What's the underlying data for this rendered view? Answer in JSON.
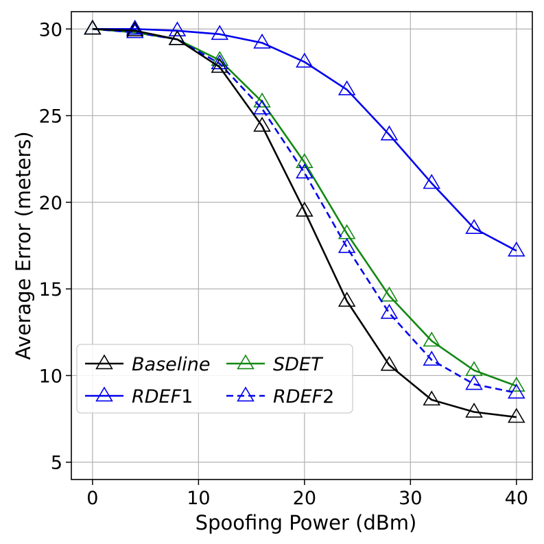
{
  "chart_data": {
    "type": "line",
    "title": "",
    "xlabel": "Spoofing Power (dBm)",
    "ylabel": "Average Error (meters)",
    "xlim": [
      -2,
      41.5
    ],
    "ylim": [
      4,
      31
    ],
    "xticks": [
      0,
      10,
      20,
      30,
      40
    ],
    "yticks": [
      5,
      10,
      15,
      20,
      25,
      30
    ],
    "grid": true,
    "legend_position": "lower-left",
    "x": [
      0,
      4,
      8,
      12,
      16,
      20,
      24,
      28,
      32,
      36,
      40
    ],
    "series": [
      {
        "name": "Baseline",
        "color": "#000000",
        "dash": "solid",
        "marker": "triangle",
        "values": [
          30.0,
          29.9,
          29.4,
          27.8,
          24.4,
          19.5,
          14.3,
          10.6,
          8.6,
          7.9,
          7.6
        ]
      },
      {
        "name": "RDEF1",
        "color": "#0000ee",
        "dash": "solid",
        "marker": "triangle",
        "values": [
          30.0,
          30.0,
          29.9,
          29.7,
          29.2,
          28.1,
          26.5,
          23.9,
          21.1,
          18.5,
          17.2
        ]
      },
      {
        "name": "SDET",
        "color": "#118811",
        "dash": "solid",
        "marker": "triangle",
        "values": [
          30.0,
          29.8,
          29.4,
          28.2,
          25.8,
          22.3,
          18.2,
          14.6,
          12.0,
          10.3,
          9.4
        ]
      },
      {
        "name": "RDEF2",
        "color": "#0000ee",
        "dash": "dashed",
        "marker": "triangle",
        "values": [
          30.0,
          29.8,
          29.4,
          28.0,
          25.4,
          21.7,
          17.4,
          13.6,
          10.9,
          9.5,
          9.0
        ]
      }
    ],
    "legend": {
      "entries": [
        {
          "series": 0,
          "main": "Baseline",
          "suffix": ""
        },
        {
          "series": 2,
          "main": "SDET",
          "suffix": ""
        },
        {
          "series": 1,
          "main": "RDEF",
          "suffix": "1"
        },
        {
          "series": 3,
          "main": "RDEF",
          "suffix": "2"
        }
      ]
    }
  }
}
